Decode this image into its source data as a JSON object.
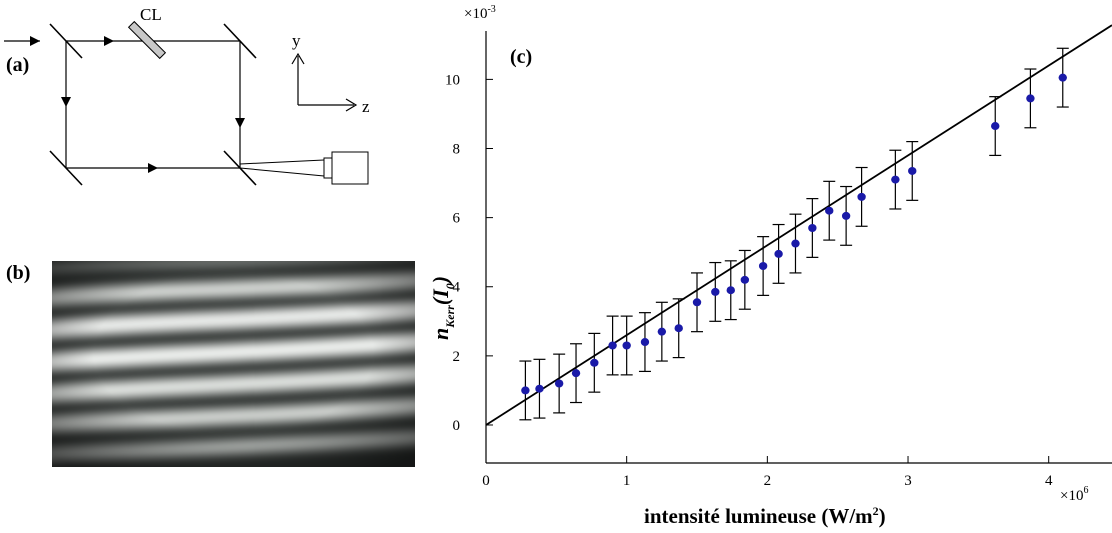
{
  "panels": {
    "a": "(a)",
    "b": "(b)",
    "c": "(c)"
  },
  "diagram": {
    "lens_label": "CL",
    "axis_y": "y",
    "axis_z": "z"
  },
  "chart_data": {
    "type": "scatter",
    "title": "",
    "panel_label": "(c)",
    "ylabel_main": "n",
    "ylabel_sub": "Kerr",
    "ylabel_suffix_open": "(I",
    "ylabel_suffix_sub": "0",
    "ylabel_suffix_close": ")",
    "xlabel": "intensité lumineuse (W/m",
    "xlabel_sup": "2",
    "xlabel_close": ")",
    "x_multiplier_base": "×10",
    "x_multiplier_exp": "6",
    "y_multiplier_base": "×10",
    "y_multiplier_exp": "-3",
    "xlim": [
      0,
      4.45
    ],
    "ylim": [
      -1.1,
      11.4
    ],
    "xticks": [
      0,
      1,
      2,
      3,
      4
    ],
    "yticks": [
      0,
      2,
      4,
      6,
      8,
      10
    ],
    "grid": false,
    "series": [
      {
        "marker_color": "#1a1aa8",
        "x": [
          0.28,
          0.38,
          0.52,
          0.64,
          0.77,
          0.9,
          1.0,
          1.13,
          1.25,
          1.37,
          1.5,
          1.63,
          1.74,
          1.84,
          1.97,
          2.08,
          2.2,
          2.32,
          2.44,
          2.56,
          2.67,
          2.91,
          3.03,
          3.62,
          3.87,
          4.1
        ],
        "y": [
          1.0,
          1.05,
          1.2,
          1.5,
          1.8,
          2.3,
          2.3,
          2.4,
          2.7,
          2.8,
          3.55,
          3.85,
          3.9,
          4.2,
          4.6,
          4.95,
          5.25,
          5.7,
          6.2,
          6.05,
          6.6,
          7.1,
          7.35,
          8.65,
          9.45,
          10.05
        ],
        "err": [
          0.85,
          0.85,
          0.85,
          0.85,
          0.85,
          0.85,
          0.85,
          0.85,
          0.85,
          0.85,
          0.85,
          0.85,
          0.85,
          0.85,
          0.85,
          0.85,
          0.85,
          0.85,
          0.85,
          0.85,
          0.85,
          0.85,
          0.85,
          0.85,
          0.85,
          0.85
        ]
      }
    ],
    "fit_line": {
      "slope": 2.6,
      "intercept": 0.0
    }
  }
}
